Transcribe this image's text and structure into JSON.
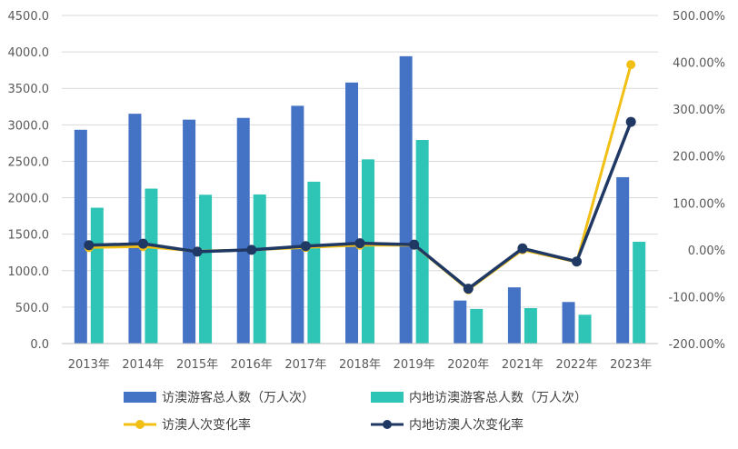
{
  "chart_data": {
    "type": "bar",
    "categories": [
      "2013年",
      "2014年",
      "2015年",
      "2016年",
      "2017年",
      "2018年",
      "2019年",
      "2020年",
      "2021年",
      "2022年",
      "2023年"
    ],
    "series": [
      {
        "name": "访澳游客总人数（万人次）",
        "kind": "bar",
        "axis": "left",
        "color": "#4472C4",
        "values": [
          2932,
          3152,
          3071,
          3095,
          3261,
          3580,
          3941,
          590,
          771,
          570,
          2282
        ]
      },
      {
        "name": "内地访澳游客总人数（万人次）",
        "kind": "bar",
        "axis": "left",
        "color": "#2EC4B6",
        "values": [
          1863,
          2125,
          2041,
          2045,
          2220,
          2526,
          2792,
          475,
          486,
          395,
          1396
        ]
      },
      {
        "name": "访澳人次变化率",
        "kind": "line",
        "axis": "right",
        "color": "#F2BF14",
        "values": [
          0.05,
          0.07,
          -0.03,
          0.0,
          0.05,
          0.1,
          0.1,
          -0.85,
          0.0,
          -0.26,
          3.95
        ]
      },
      {
        "name": "内地访澳人次变化率",
        "kind": "line",
        "axis": "right",
        "color": "#203864",
        "values": [
          0.1,
          0.13,
          -0.04,
          0.0,
          0.08,
          0.14,
          0.11,
          -0.83,
          0.03,
          -0.25,
          2.73
        ]
      }
    ],
    "left_axis": {
      "ylim": [
        0,
        4500
      ],
      "ticks": [
        "0.0",
        "500.0",
        "1000.0",
        "1500.0",
        "2000.0",
        "2500.0",
        "3000.0",
        "3500.0",
        "4000.0",
        "4500.0"
      ]
    },
    "right_axis": {
      "ylim": [
        -2.0,
        5.0
      ],
      "ticks": [
        "-200.00%",
        "-100.00%",
        "0.00%",
        "100.00%",
        "200.00%",
        "300.00%",
        "400.00%",
        "500.00%"
      ]
    },
    "grid": true,
    "legend_position": "bottom"
  }
}
